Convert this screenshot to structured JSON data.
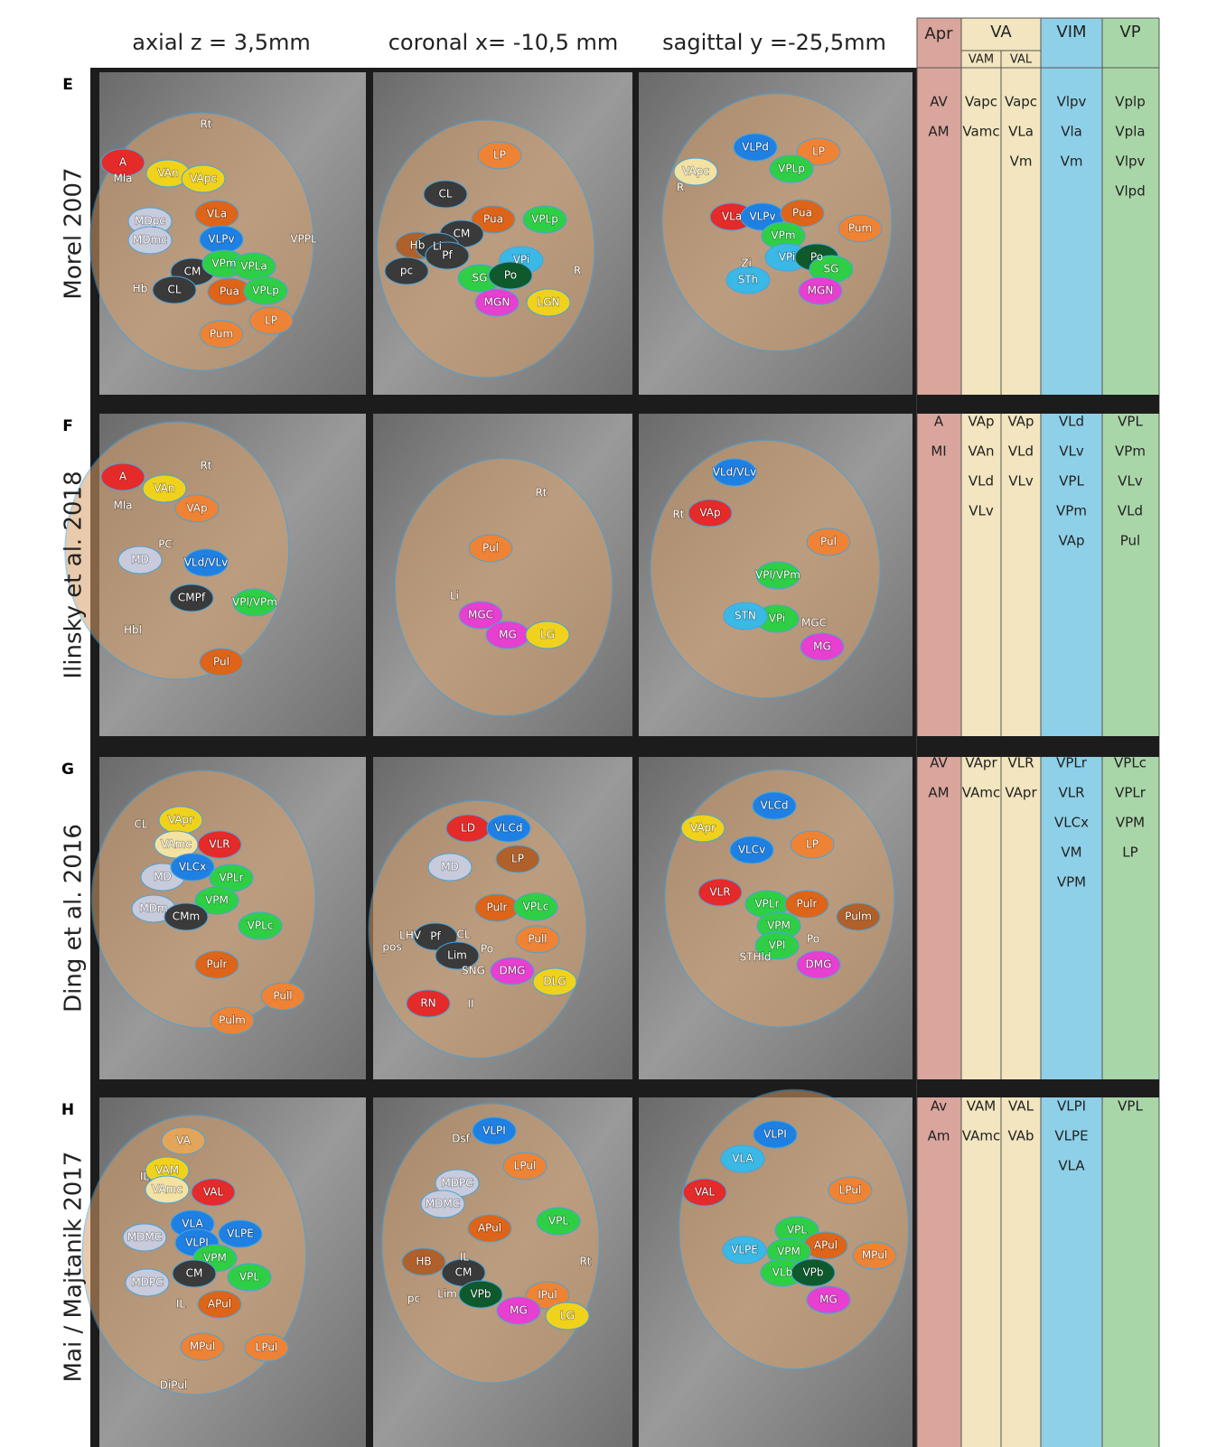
{
  "header": {
    "columns": [
      "axial  z = 3,5mm",
      "coronal  x= -10,5 mm",
      "sagittal  y =-25,5mm"
    ]
  },
  "table_header": {
    "apr": "Apr",
    "va": "VA",
    "vam": "VAM",
    "val": "VAL",
    "vim": "VIM",
    "vp": "VP"
  },
  "rows": [
    {
      "letter": "E",
      "title": "Morel 2007",
      "panels": [
        [
          "Rt",
          "A",
          "VAn",
          "Mla",
          "VApc",
          "VLa",
          "MDpc",
          "MDmc",
          "VLPv",
          "VPPL",
          "CM",
          "VPm",
          "VPLa",
          "Hb",
          "CL",
          "Pua",
          "VPLp",
          "LP",
          "Pum"
        ],
        [
          "LP",
          "CL",
          "Pua",
          "VPLp",
          "CM",
          "Hb",
          "Li",
          "Pf",
          "pc",
          "VPi",
          "SG",
          "Po",
          "R",
          "MGN",
          "LGN"
        ],
        [
          "VLPd",
          "LP",
          "VPLp",
          "VApc",
          "R",
          "Pum",
          "VLa",
          "VLPv",
          "Pua",
          "VPm",
          "Zi",
          "VPi",
          "Po",
          "SG",
          "STh",
          "MGN"
        ]
      ],
      "table": {
        "apr": [
          "AV",
          "AM"
        ],
        "vam": [
          "Vapc",
          "Vamc"
        ],
        "val": [
          "Vapc",
          "VLa",
          "Vm"
        ],
        "vim": [
          "Vlpv",
          "Vla",
          "Vm"
        ],
        "vp": [
          "Vplp",
          "Vpla",
          "Vlpv",
          "Vlpd"
        ]
      }
    },
    {
      "letter": "F",
      "title": "Ilinsky et al. 2018",
      "panels": [
        [
          "Rt",
          "A",
          "VAn",
          "Mla",
          "VAp",
          "PC",
          "MD",
          "VLd/VLv",
          "CMPf",
          "VPl/VPm",
          "Hbl",
          "Pul"
        ],
        [
          "Rt",
          "Pul",
          "Li",
          "MGC",
          "MG",
          "LG"
        ],
        [
          "VLd/VLv",
          "Rt",
          "VAp",
          "Pul",
          "VPl/VPm",
          "VPi",
          "STN",
          "MGC",
          "MG"
        ]
      ],
      "table": {
        "apr": [
          "A",
          "MI"
        ],
        "vam": [
          "VAp",
          "VAn",
          "VLd",
          "VLv"
        ],
        "val": [
          "VAp",
          "VLd",
          "VLv"
        ],
        "vim": [
          "VLd",
          "VLv",
          "VPL",
          "VPm",
          "VAp"
        ],
        "vp": [
          "VPL",
          "VPm",
          "VLv",
          "VLd",
          "Pul"
        ]
      }
    },
    {
      "letter": "G",
      "title": "Ding et al. 2016",
      "panels": [
        [
          "VApr",
          "CL",
          "VAmc",
          "VLR",
          "MD",
          "VLCx",
          "VPLr",
          "VPM",
          "MDm",
          "CMm",
          "VPLc",
          "Pulr",
          "Pull",
          "Pulm"
        ],
        [
          "LD",
          "VLCd",
          "LP",
          "MD",
          "Pulr",
          "VPLc",
          "LHV",
          "Pf",
          "CL",
          "Pull",
          "pos",
          "Lim",
          "Po",
          "SNG",
          "DMG",
          "DLG",
          "RN",
          "II"
        ],
        [
          "VLCd",
          "VApr",
          "VLCv",
          "LP",
          "VLR",
          "VPLr",
          "Pulr",
          "Pulm",
          "VPM",
          "Po",
          "VPl",
          "STHld",
          "DMG"
        ]
      ],
      "table": {
        "apr": [
          "AV",
          "AM"
        ],
        "vam": [
          "VApr",
          "VAmc"
        ],
        "val": [
          "VLR",
          "VApr"
        ],
        "vim": [
          "VPLr",
          "VLR",
          "VLCx",
          "VM",
          "VPM"
        ],
        "vp": [
          "VPLc",
          "VPLr",
          "VPM",
          "LP"
        ]
      }
    },
    {
      "letter": "H",
      "title": "Mai / Majtanik 2017",
      "panels": [
        [
          "VA",
          "VAM",
          "IL",
          "VAL",
          "VAmc",
          "VLA",
          "MDMC",
          "VLPE",
          "VLPI",
          "VPM",
          "CM",
          "MDPC",
          "VPL",
          "IL",
          "APul",
          "MPul",
          "LPul",
          "DiPul"
        ],
        [
          "VLPI",
          "Dsf",
          "LPul",
          "MDPC",
          "MDMC",
          "VPL",
          "APul",
          "HB",
          "IL",
          "Rt",
          "CM",
          "pc",
          "Lim",
          "VPb",
          "IPul",
          "MG",
          "LG"
        ],
        [
          "VLPI",
          "VLA",
          "LPul",
          "VAL",
          "VPL",
          "APul",
          "MPul",
          "VLPE",
          "VPM",
          "VLb",
          "VPb",
          "MG"
        ]
      ],
      "table": {
        "apr": [
          "Av",
          "Am"
        ],
        "vam": [
          "VAM",
          "VAmc"
        ],
        "val": [
          "VAL",
          "VAb"
        ],
        "vim": [
          "VLPI",
          "VLPE",
          "VLA"
        ],
        "vp": [
          "VPL"
        ]
      }
    }
  ]
}
